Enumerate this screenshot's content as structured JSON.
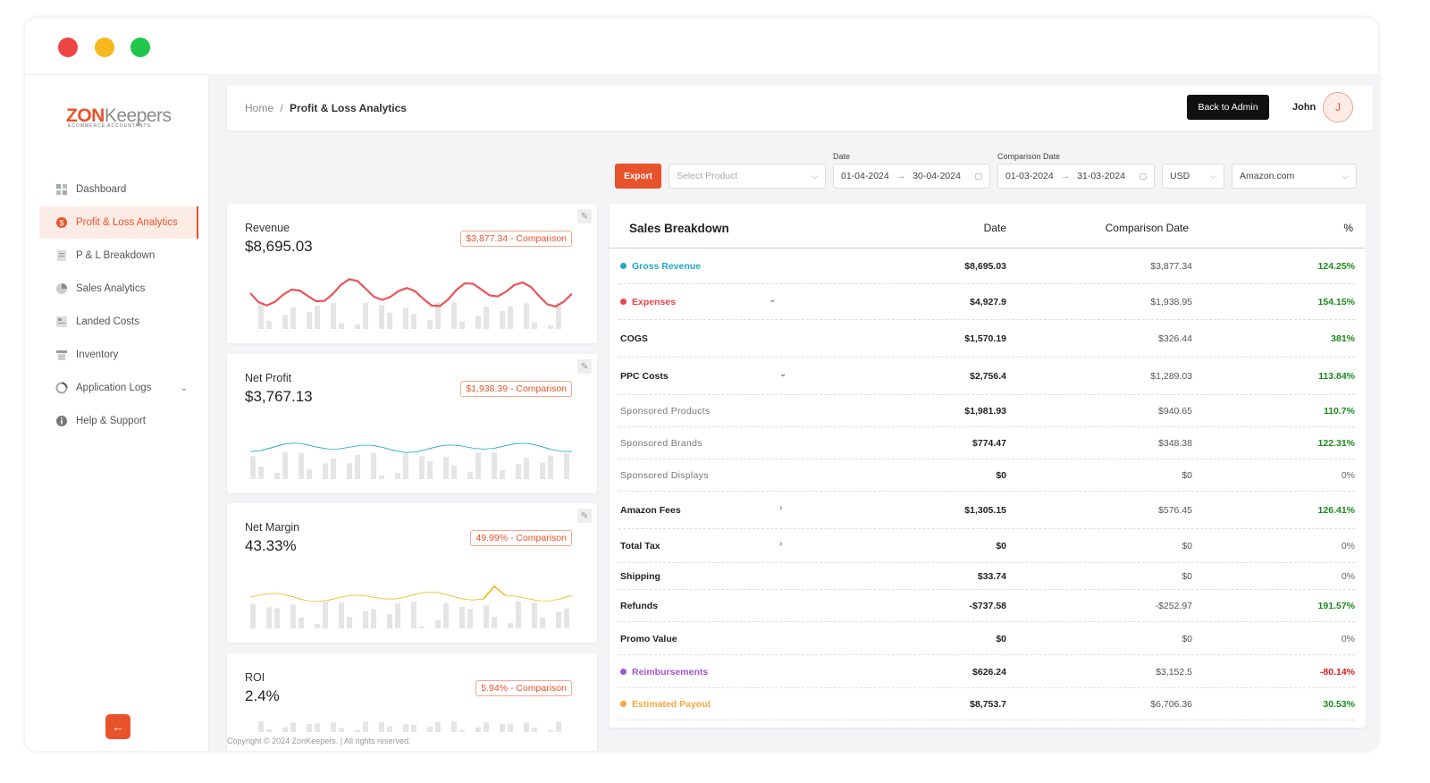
{
  "brand": {
    "logo_zon": "ZON",
    "logo_keepers": "Keepers",
    "logo_sub": "ECOMMERCE ACCOUNTANTS"
  },
  "sidebar": {
    "items": [
      {
        "label": "Dashboard",
        "icon": "dashboard-icon"
      },
      {
        "label": "Profit & Loss Analytics",
        "icon": "dollar-icon",
        "active": true
      },
      {
        "label": "P & L Breakdown",
        "icon": "document-icon"
      },
      {
        "label": "Sales Analytics",
        "icon": "pie-icon"
      },
      {
        "label": "Landed Costs",
        "icon": "box-icon"
      },
      {
        "label": "Inventory",
        "icon": "inventory-icon"
      },
      {
        "label": "Application Logs",
        "icon": "logs-icon",
        "has_children": true
      },
      {
        "label": "Help & Support",
        "icon": "info-icon"
      }
    ],
    "collapse_icon": "←"
  },
  "header": {
    "breadcrumb_home": "Home",
    "breadcrumb_sep": "/",
    "breadcrumb_current": "Profit & Loss Analytics",
    "back_button": "Back to Admin",
    "user_name": "John",
    "avatar_initial": "J"
  },
  "filters": {
    "export": "Export",
    "product_placeholder": "Select Product",
    "date_label": "Date",
    "date_from": "01-04-2024",
    "date_to": "30-04-2024",
    "comp_label": "Comparison Date",
    "comp_from": "01-03-2024",
    "comp_to": "31-03-2024",
    "currency": "USD",
    "marketplace": "Amazon.com"
  },
  "cards": [
    {
      "title": "Revenue",
      "value": "$8,695.03",
      "comparison": "$3,877.34 - Comparison",
      "color": "#e9545a"
    },
    {
      "title": "Net Profit",
      "value": "$3,767.13",
      "comparison": "$1,938.39 - Comparison",
      "color": "#1ea7c9"
    },
    {
      "title": "Net Margin",
      "value": "43.33%",
      "comparison": "49.99% - Comparison",
      "color": "#f5b81c"
    },
    {
      "title": "ROI",
      "value": "2.4%",
      "comparison": "5.94% - Comparison",
      "color": "#e8532b"
    }
  ],
  "table": {
    "headers": {
      "name": "Sales Breakdown",
      "date": "Date",
      "comparison": "Comparison Date",
      "pct": "%"
    },
    "rows": [
      {
        "name": "Gross Revenue",
        "date": "$8,695.03",
        "comparison": "$3,877.34",
        "pct": "124.25%",
        "bullet": "#1ea7c9",
        "name_color": "#1ea7c9",
        "pct_class": "pct-green"
      },
      {
        "name": "Expenses",
        "date": "$4,927.9",
        "comparison": "$1,938.95",
        "pct": "154.15%",
        "bullet": "#e9454a",
        "name_color": "#e9454a",
        "pct_class": "pct-green",
        "chev": "⌄"
      },
      {
        "name": "COGS",
        "date": "$1,570.19",
        "comparison": "$326.44",
        "pct": "381%",
        "pct_class": "pct-green"
      },
      {
        "name": "PPC Costs",
        "date": "$2,756.4",
        "comparison": "$1,289.03",
        "pct": "113.84%",
        "pct_class": "pct-green",
        "chev": "⌄"
      },
      {
        "name": "Sponsored Products",
        "date": "$1,981.93",
        "comparison": "$940.65",
        "pct": "110.7%",
        "pct_class": "pct-green",
        "sub": true
      },
      {
        "name": "Sponsored Brands",
        "date": "$774.47",
        "comparison": "$348.38",
        "pct": "122.31%",
        "pct_class": "pct-green",
        "sub": true
      },
      {
        "name": "Sponsored Displays",
        "date": "$0",
        "comparison": "$0",
        "pct": "0%",
        "pct_class": "pct-gray",
        "sub": true
      },
      {
        "name": "Amazon Fees",
        "date": "$1,305.15",
        "comparison": "$576.45",
        "pct": "126.41%",
        "pct_class": "pct-green",
        "chev": "›"
      },
      {
        "name": "Total Tax",
        "date": "$0",
        "comparison": "$0",
        "pct": "0%",
        "pct_class": "pct-gray",
        "chev": "›"
      },
      {
        "name": "Shipping",
        "date": "$33.74",
        "comparison": "$0",
        "pct": "0%",
        "pct_class": "pct-gray"
      },
      {
        "name": "Refunds",
        "date": "-$737.58",
        "comparison": "-$252.97",
        "pct": "191.57%",
        "pct_class": "pct-green"
      },
      {
        "name": "Promo Value",
        "date": "$0",
        "comparison": "$0",
        "pct": "0%",
        "pct_class": "pct-gray"
      },
      {
        "name": "Reimbursements",
        "date": "$626.24",
        "comparison": "$3,152.5",
        "pct": "-80.14%",
        "bullet": "#9b59d0",
        "name_color": "#9b59d0",
        "pct_class": "pct-red"
      },
      {
        "name": "Estimated Payout",
        "date": "$8,753.7",
        "comparison": "$6,706.36",
        "pct": "30.53%",
        "bullet": "#f5a83a",
        "name_color": "#f5a83a",
        "pct_class": "pct-green"
      }
    ]
  },
  "footer": {
    "copyright": "Copyright © 2024 ZonKeepers.  | All rights reserved."
  }
}
